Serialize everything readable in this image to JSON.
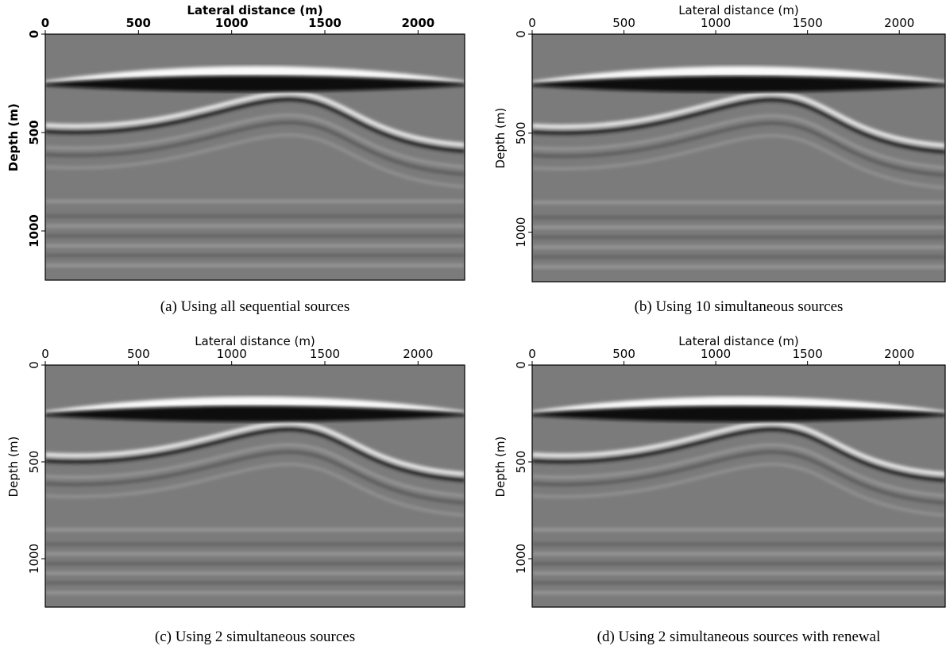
{
  "chart_data": [
    {
      "type": "image",
      "caption": "(a) Using all sequential sources",
      "xlabel": "Lateral distance (m)",
      "ylabel": "Depth (m)",
      "xlim": [
        0,
        2250
      ],
      "xticks": [
        0,
        500,
        1000,
        1500,
        2000
      ],
      "ylim": [
        1250,
        0
      ],
      "yticks": [
        0,
        500,
        1000
      ]
    },
    {
      "type": "image",
      "caption": "(b) Using 10 simultaneous sources",
      "xlabel": "Lateral distance (m)",
      "ylabel": "Depth (m)",
      "xlim": [
        0,
        2250
      ],
      "xticks": [
        0,
        500,
        1000,
        1500,
        2000
      ],
      "ylim": [
        1250,
        0
      ],
      "yticks": [
        0,
        500,
        1000
      ]
    },
    {
      "type": "image",
      "caption": "(c) Using 2 simultaneous sources",
      "xlabel": "Lateral distance (m)",
      "ylabel": "Depth (m)",
      "xlim": [
        0,
        2250
      ],
      "xticks": [
        0,
        500,
        1000,
        1500,
        2000
      ],
      "ylim": [
        1250,
        0
      ],
      "yticks": [
        0,
        500,
        1000
      ]
    },
    {
      "type": "image",
      "caption": "(d) Using 2 simultaneous sources with renewal",
      "xlabel": "Lateral distance (m)",
      "ylabel": "Depth (m)",
      "xlim": [
        0,
        2250
      ],
      "xticks": [
        0,
        500,
        1000,
        1500,
        2000
      ],
      "ylim": [
        1250,
        0
      ],
      "yticks": [
        0,
        500,
        1000
      ]
    }
  ]
}
